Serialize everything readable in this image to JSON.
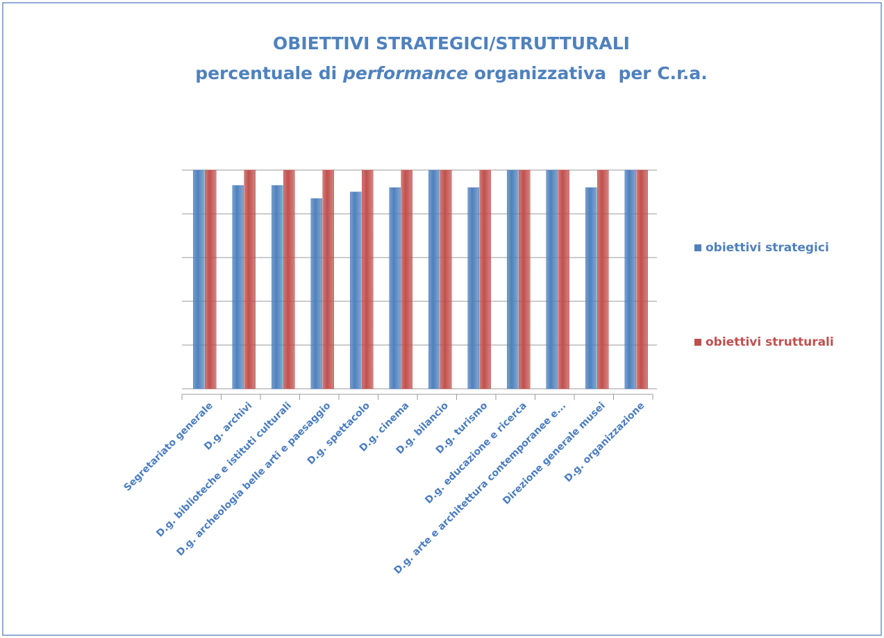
{
  "chart_data": {
    "type": "bar",
    "title": "OBIETTIVI STRATEGICI/STRUTTURALI",
    "subtitle": [
      "percentuale di ",
      "performance",
      " organizzativa  per C.r.a."
    ],
    "categories": [
      "Segretariato generale",
      "D.g. archivi",
      "D.g. biblioteche e istituti culturali",
      "D.g. archeologia belle arti e paesaggio",
      "D.g. spettacolo",
      "D.g. cinema",
      "D.g. bilancio",
      "D.g. turismo",
      "D.g. educazione e ricerca",
      "D.g. arte e architettura contemporanee e...",
      "Direzione generale musei",
      "D.g. organizzazione"
    ],
    "series": [
      {
        "name": "obiettivi strategici",
        "color": "#4f81bd",
        "values": [
          100,
          93,
          93,
          87,
          90,
          92,
          100,
          92,
          100,
          100,
          92,
          100
        ]
      },
      {
        "name": "obiettivi strutturali",
        "color": "#c0504d",
        "values": [
          100,
          100,
          100,
          100,
          100,
          100,
          100,
          100,
          100,
          100,
          100,
          100
        ]
      }
    ],
    "ylim": [
      0,
      100
    ],
    "yticks": [
      0,
      20,
      40,
      60,
      80,
      100
    ],
    "grid": true,
    "legend": "right"
  }
}
